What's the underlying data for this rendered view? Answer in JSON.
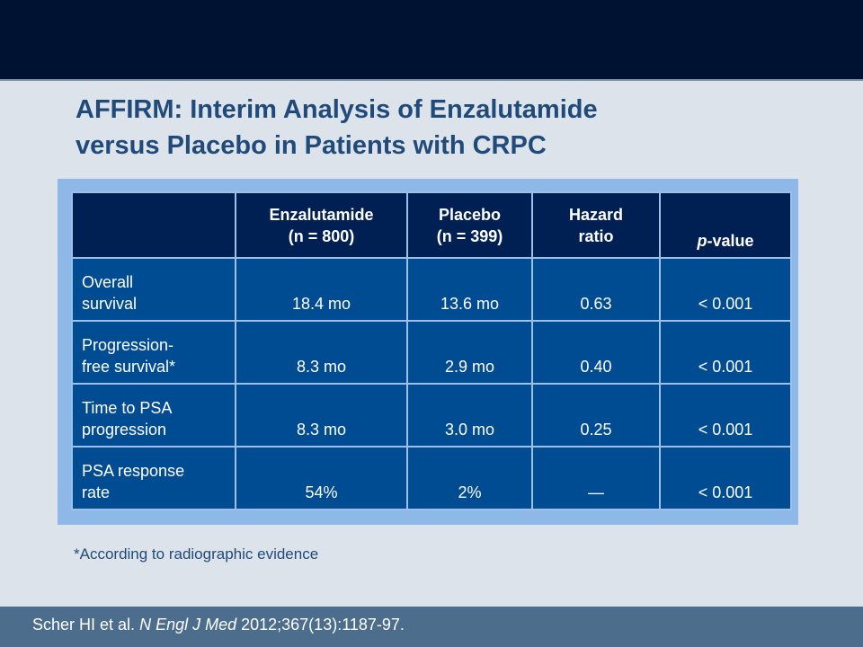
{
  "slide": {
    "title_line1": "AFFIRM: Interim Analysis of Enzalutamide",
    "title_line2": "versus Placebo in Patients with CRPC",
    "footnote": "*According to radiographic evidence",
    "citation": {
      "authors": "Scher HI et al. ",
      "journal": "N Engl J Med",
      "details": " 2012;367(13):1187-97."
    }
  },
  "table": {
    "headers": {
      "enz_line1": "Enzalutamide",
      "enz_line2": "(n = 800)",
      "pla_line1": "Placebo",
      "pla_line2": "(n = 399)",
      "hr_line1": "Hazard",
      "hr_line2": "ratio",
      "p_italic": "p",
      "p_rest": "-value"
    },
    "rows": [
      {
        "label_line1": "Overall",
        "label_line2": "survival",
        "enzalutamide": "18.4 mo",
        "placebo": "13.6 mo",
        "hazard_ratio": "0.63",
        "p_value": "< 0.001"
      },
      {
        "label_line1": "Progression-",
        "label_line2": "free survival*",
        "enzalutamide": "8.3 mo",
        "placebo": "2.9 mo",
        "hazard_ratio": "0.40",
        "p_value": "< 0.001"
      },
      {
        "label_line1": "Time to PSA",
        "label_line2": "progression",
        "enzalutamide": "8.3 mo",
        "placebo": "3.0 mo",
        "hazard_ratio": "0.25",
        "p_value": "< 0.001"
      },
      {
        "label_line1": "PSA response",
        "label_line2": "rate",
        "enzalutamide": "54%",
        "placebo": "2%",
        "hazard_ratio": "—",
        "p_value": "< 0.001"
      }
    ]
  },
  "colors": {
    "background": "#dce3ea",
    "top_bar": "#001232",
    "title": "#1f4a7a",
    "table_frame": "#8eb8e8",
    "header_cell": "#001f52",
    "body_cell": "#004c92",
    "bottom_bar": "#4c6e8c"
  }
}
